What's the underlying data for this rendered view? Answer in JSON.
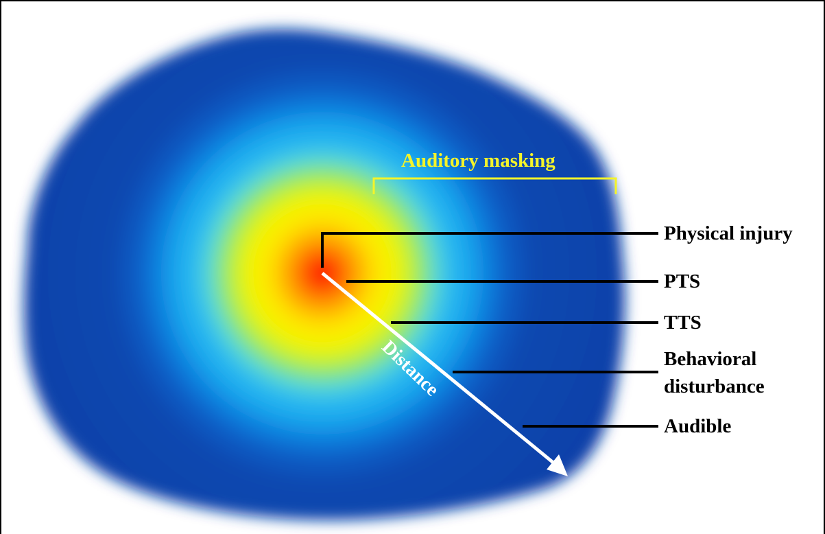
{
  "diagram": {
    "masking_label": "Auditory masking",
    "distance_label": "Distance",
    "zones": [
      {
        "id": "physical-injury",
        "label": "Physical injury"
      },
      {
        "id": "pts",
        "label": "PTS"
      },
      {
        "id": "tts",
        "label": "TTS"
      },
      {
        "id": "behavioral",
        "label_line1": "Behavioral",
        "label_line2": "disturbance"
      },
      {
        "id": "audible",
        "label": "Audible"
      }
    ]
  },
  "colors": {
    "outer_blue": "#0a3fa8",
    "mid_blue": "#0a6fd8",
    "cyan": "#1ab4ee",
    "light_cyan": "#5fd6e6",
    "green": "#9ee86a",
    "yellow": "#fff500",
    "orange": "#ff9a00",
    "red": "#ff1a00",
    "masking_text": "#f4f42a",
    "line": "#000000",
    "arrow": "#ffffff"
  }
}
